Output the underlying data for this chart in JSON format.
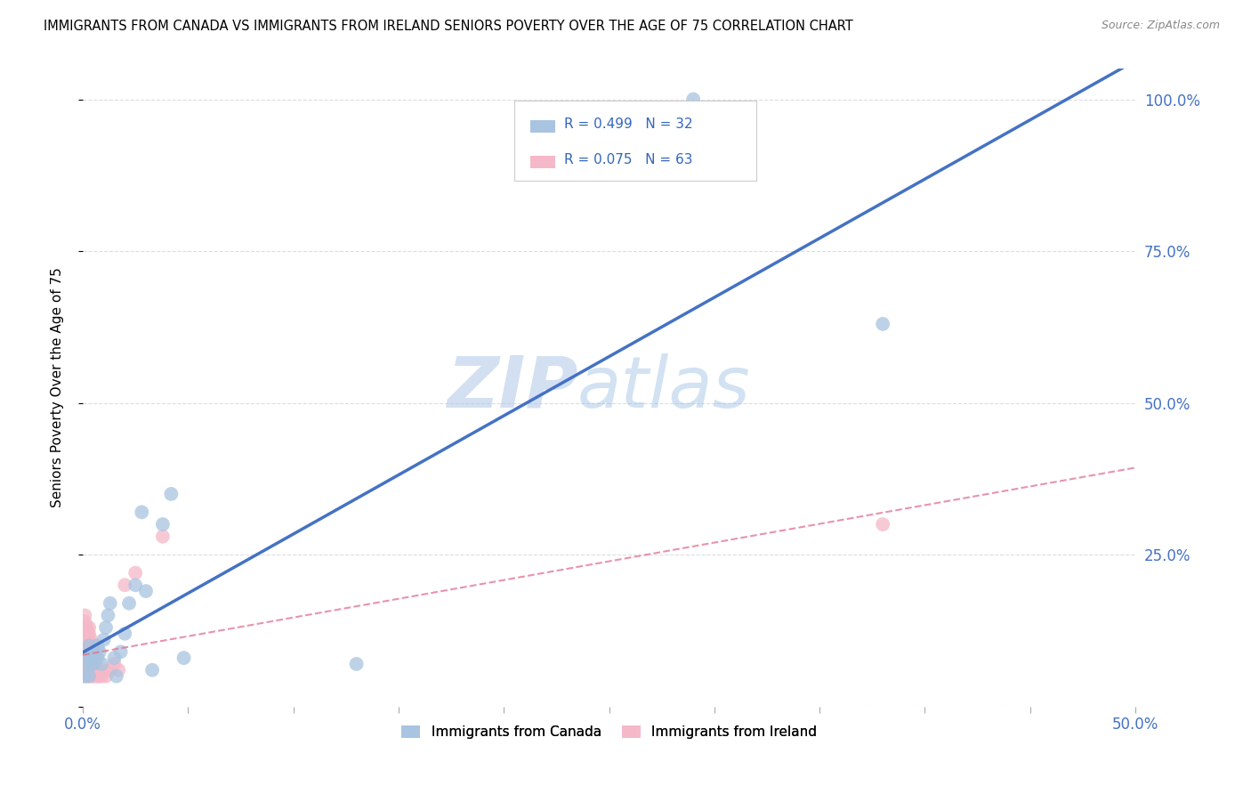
{
  "title": "IMMIGRANTS FROM CANADA VS IMMIGRANTS FROM IRELAND SENIORS POVERTY OVER THE AGE OF 75 CORRELATION CHART",
  "source": "Source: ZipAtlas.com",
  "ylabel": "Seniors Poverty Over the Age of 75",
  "legend_label1": "Immigrants from Canada",
  "legend_label2": "Immigrants from Ireland",
  "R_canada": 0.499,
  "N_canada": 32,
  "R_ireland": 0.075,
  "N_ireland": 63,
  "color_canada": "#a8c4e0",
  "color_ireland": "#f5b8c8",
  "line_color_canada": "#4472c4",
  "line_color_ireland": "#e07090",
  "canada_x": [
    0.001,
    0.002,
    0.002,
    0.003,
    0.003,
    0.004,
    0.004,
    0.005,
    0.006,
    0.007,
    0.007,
    0.008,
    0.009,
    0.01,
    0.011,
    0.012,
    0.013,
    0.015,
    0.016,
    0.018,
    0.02,
    0.022,
    0.025,
    0.028,
    0.03,
    0.033,
    0.038,
    0.042,
    0.048,
    0.29,
    0.38,
    0.13
  ],
  "canada_y": [
    0.05,
    0.07,
    0.08,
    0.05,
    0.1,
    0.07,
    0.08,
    0.07,
    0.09,
    0.08,
    0.1,
    0.09,
    0.07,
    0.11,
    0.13,
    0.15,
    0.17,
    0.08,
    0.05,
    0.09,
    0.12,
    0.17,
    0.2,
    0.32,
    0.19,
    0.06,
    0.3,
    0.35,
    0.08,
    1.0,
    0.63,
    0.07
  ],
  "ireland_x": [
    0.001,
    0.001,
    0.001,
    0.001,
    0.001,
    0.001,
    0.001,
    0.001,
    0.001,
    0.001,
    0.001,
    0.001,
    0.001,
    0.001,
    0.001,
    0.001,
    0.001,
    0.002,
    0.002,
    0.002,
    0.002,
    0.002,
    0.002,
    0.002,
    0.002,
    0.002,
    0.002,
    0.003,
    0.003,
    0.003,
    0.003,
    0.003,
    0.003,
    0.003,
    0.003,
    0.003,
    0.004,
    0.004,
    0.004,
    0.004,
    0.004,
    0.004,
    0.004,
    0.005,
    0.005,
    0.005,
    0.005,
    0.006,
    0.006,
    0.006,
    0.007,
    0.007,
    0.008,
    0.009,
    0.01,
    0.011,
    0.013,
    0.015,
    0.017,
    0.02,
    0.025,
    0.038,
    0.38
  ],
  "ireland_y": [
    0.05,
    0.06,
    0.06,
    0.07,
    0.07,
    0.07,
    0.08,
    0.08,
    0.09,
    0.09,
    0.1,
    0.1,
    0.11,
    0.12,
    0.13,
    0.14,
    0.15,
    0.05,
    0.06,
    0.07,
    0.07,
    0.08,
    0.09,
    0.1,
    0.11,
    0.12,
    0.13,
    0.05,
    0.06,
    0.07,
    0.08,
    0.09,
    0.1,
    0.11,
    0.12,
    0.13,
    0.05,
    0.06,
    0.07,
    0.08,
    0.09,
    0.1,
    0.11,
    0.05,
    0.06,
    0.07,
    0.08,
    0.05,
    0.06,
    0.07,
    0.05,
    0.06,
    0.05,
    0.05,
    0.06,
    0.05,
    0.06,
    0.07,
    0.06,
    0.2,
    0.22,
    0.28,
    0.3
  ],
  "xlim": [
    0.0,
    0.5
  ],
  "ylim": [
    0.0,
    1.05
  ],
  "watermark_zip": "ZIP",
  "watermark_atlas": "atlas",
  "background_color": "#ffffff",
  "grid_color": "#dddddd",
  "tick_color": "#4472c4",
  "title_fontsize": 10.5,
  "source_fontsize": 9
}
